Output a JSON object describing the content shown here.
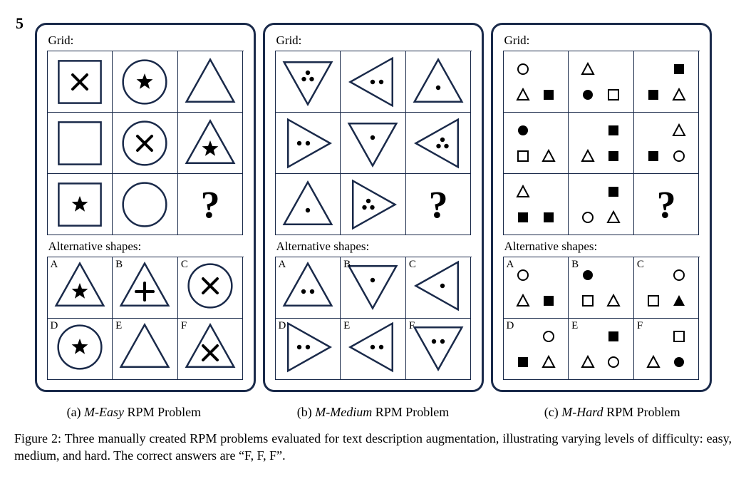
{
  "truncated_top_text": "5",
  "stroke_color": "#1a2a4a",
  "panels": [
    {
      "grid_label": "Grid:",
      "alt_label": "Alternative shapes:",
      "grid": [
        {
          "shape": "square",
          "inner": "x"
        },
        {
          "shape": "circle",
          "inner": "star"
        },
        {
          "shape": "triangle-up",
          "inner": null
        },
        {
          "shape": "square",
          "inner": null
        },
        {
          "shape": "circle",
          "inner": "x"
        },
        {
          "shape": "triangle-up",
          "inner": "star"
        },
        {
          "shape": "square",
          "inner": "star"
        },
        {
          "shape": "circle",
          "inner": null
        },
        {
          "shape": "qmark"
        }
      ],
      "alternatives": [
        {
          "letter": "A",
          "shape": "triangle-up",
          "inner": "star"
        },
        {
          "letter": "B",
          "shape": "triangle-up",
          "inner": "plus"
        },
        {
          "letter": "C",
          "shape": "circle",
          "inner": "x"
        },
        {
          "letter": "D",
          "shape": "circle",
          "inner": "star"
        },
        {
          "letter": "E",
          "shape": "triangle-up",
          "inner": null
        },
        {
          "letter": "F",
          "shape": "triangle-up",
          "inner": "x"
        }
      ]
    },
    {
      "grid_label": "Grid:",
      "alt_label": "Alternative shapes:",
      "grid": [
        {
          "shape": "triangle-down",
          "dots": 3
        },
        {
          "shape": "triangle-left",
          "dots": 2
        },
        {
          "shape": "triangle-up",
          "dots": 1
        },
        {
          "shape": "triangle-right",
          "dots": 2
        },
        {
          "shape": "triangle-down",
          "dots": 1
        },
        {
          "shape": "triangle-left",
          "dots": 3
        },
        {
          "shape": "triangle-up",
          "dots": 1
        },
        {
          "shape": "triangle-right",
          "dots": 3
        },
        {
          "shape": "qmark"
        }
      ],
      "alternatives": [
        {
          "letter": "A",
          "shape": "triangle-up",
          "dots": 2
        },
        {
          "letter": "B",
          "shape": "triangle-down",
          "dots": 1
        },
        {
          "letter": "C",
          "shape": "triangle-left",
          "dots": 1
        },
        {
          "letter": "D",
          "shape": "triangle-right",
          "dots": 2
        },
        {
          "letter": "E",
          "shape": "triangle-left",
          "dots": 2
        },
        {
          "letter": "F",
          "shape": "triangle-down",
          "dots": 2
        }
      ]
    },
    {
      "grid_label": "Grid:",
      "alt_label": "Alternative shapes:",
      "grid": [
        {
          "multi": [
            [
              "",
              ""
            ],
            [
              "circle-o",
              ""
            ],
            [
              "tri-o",
              "sq-f"
            ]
          ]
        },
        {
          "multi": [
            [
              "",
              ""
            ],
            [
              "tri-o",
              ""
            ],
            [
              "circle-f",
              "sq-o"
            ]
          ]
        },
        {
          "multi": [
            [
              "",
              ""
            ],
            [
              "",
              "sq-f"
            ],
            [
              "sq-f",
              "tri-o"
            ]
          ]
        },
        {
          "multi": [
            [
              "",
              ""
            ],
            [
              "circle-f",
              ""
            ],
            [
              "sq-o",
              "tri-o"
            ]
          ]
        },
        {
          "multi": [
            [
              "",
              ""
            ],
            [
              "",
              "sq-f"
            ],
            [
              "tri-o",
              "sq-f"
            ]
          ]
        },
        {
          "multi": [
            [
              "",
              ""
            ],
            [
              "",
              "tri-o"
            ],
            [
              "sq-f",
              "circle-o"
            ]
          ]
        },
        {
          "multi": [
            [
              "",
              ""
            ],
            [
              "tri-o",
              ""
            ],
            [
              "sq-f",
              "sq-f"
            ]
          ]
        },
        {
          "multi": [
            [
              "",
              ""
            ],
            [
              "",
              "sq-f"
            ],
            [
              "circle-o",
              "tri-o"
            ]
          ]
        },
        {
          "shape": "qmark"
        }
      ],
      "alternatives": [
        {
          "letter": "A",
          "multi": [
            [
              "",
              ""
            ],
            [
              "circle-o",
              ""
            ],
            [
              "tri-o",
              "sq-f"
            ]
          ]
        },
        {
          "letter": "B",
          "multi": [
            [
              "",
              ""
            ],
            [
              "circle-f",
              ""
            ],
            [
              "sq-o",
              "tri-o"
            ]
          ]
        },
        {
          "letter": "C",
          "multi": [
            [
              "",
              ""
            ],
            [
              "",
              "circle-o"
            ],
            [
              "sq-o",
              "tri-f"
            ]
          ]
        },
        {
          "letter": "D",
          "multi": [
            [
              "",
              ""
            ],
            [
              "",
              "circle-o"
            ],
            [
              "sq-f",
              "tri-o"
            ]
          ]
        },
        {
          "letter": "E",
          "multi": [
            [
              "",
              ""
            ],
            [
              "",
              "sq-f"
            ],
            [
              "tri-o",
              "circle-o"
            ]
          ]
        },
        {
          "letter": "F",
          "multi": [
            [
              "",
              ""
            ],
            [
              "",
              "sq-o"
            ],
            [
              "tri-o",
              "circle-f"
            ]
          ]
        }
      ]
    }
  ],
  "subcaptions": [
    {
      "tag": "(a)",
      "name": "M-Easy",
      "suffix": " RPM Problem"
    },
    {
      "tag": "(b)",
      "name": "M-Medium",
      "suffix": " RPM Problem"
    },
    {
      "tag": "(c)",
      "name": "M-Hard",
      "suffix": " RPM Problem"
    }
  ],
  "figure_caption": "Figure 2: Three manually created RPM problems evaluated for text description augmentation, illustrating varying levels of difficulty: easy, medium, and hard. The correct answers are “F, F, F”."
}
